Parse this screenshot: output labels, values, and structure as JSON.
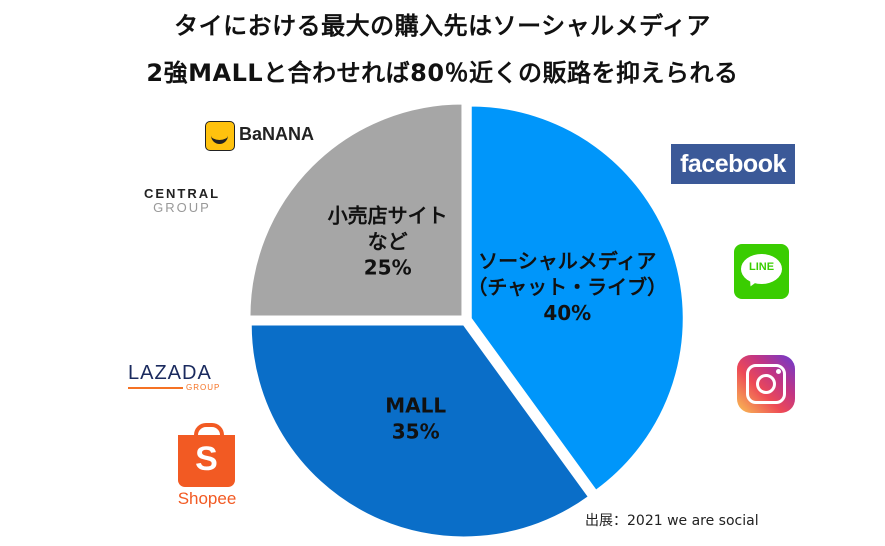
{
  "title_line1": "タイにおける最大の購入先はソーシャルメディア",
  "title_line2": "2強MALLと合わせれば80％近くの販路を抑えられる",
  "chart_data": {
    "type": "pie",
    "start_angle_deg": 0,
    "direction": "clockwise",
    "slices": [
      {
        "label_lines": [
          "ソーシャルメディア",
          "（チャット・ライブ）"
        ],
        "value": 40,
        "value_label": "40%",
        "color": "#0096fa"
      },
      {
        "label_lines": [
          "MALL"
        ],
        "value": 35,
        "value_label": "35%",
        "color": "#0a6ec8"
      },
      {
        "label_lines": [
          "小売店サイト",
          "など"
        ],
        "value": 25,
        "value_label": "25%",
        "color": "#a6a6a6"
      }
    ]
  },
  "logos": {
    "facebook": "facebook",
    "line": "LINE",
    "instagram": "instagram-icon",
    "banana": "BaNANA",
    "central_line1": "CENTRAL",
    "central_line2": "GROUP",
    "lazada": "LAZADA",
    "lazada_sub": "GROUP",
    "shopee_mark": "S",
    "shopee": "Shopee"
  },
  "source": "出展：2021 we are social"
}
